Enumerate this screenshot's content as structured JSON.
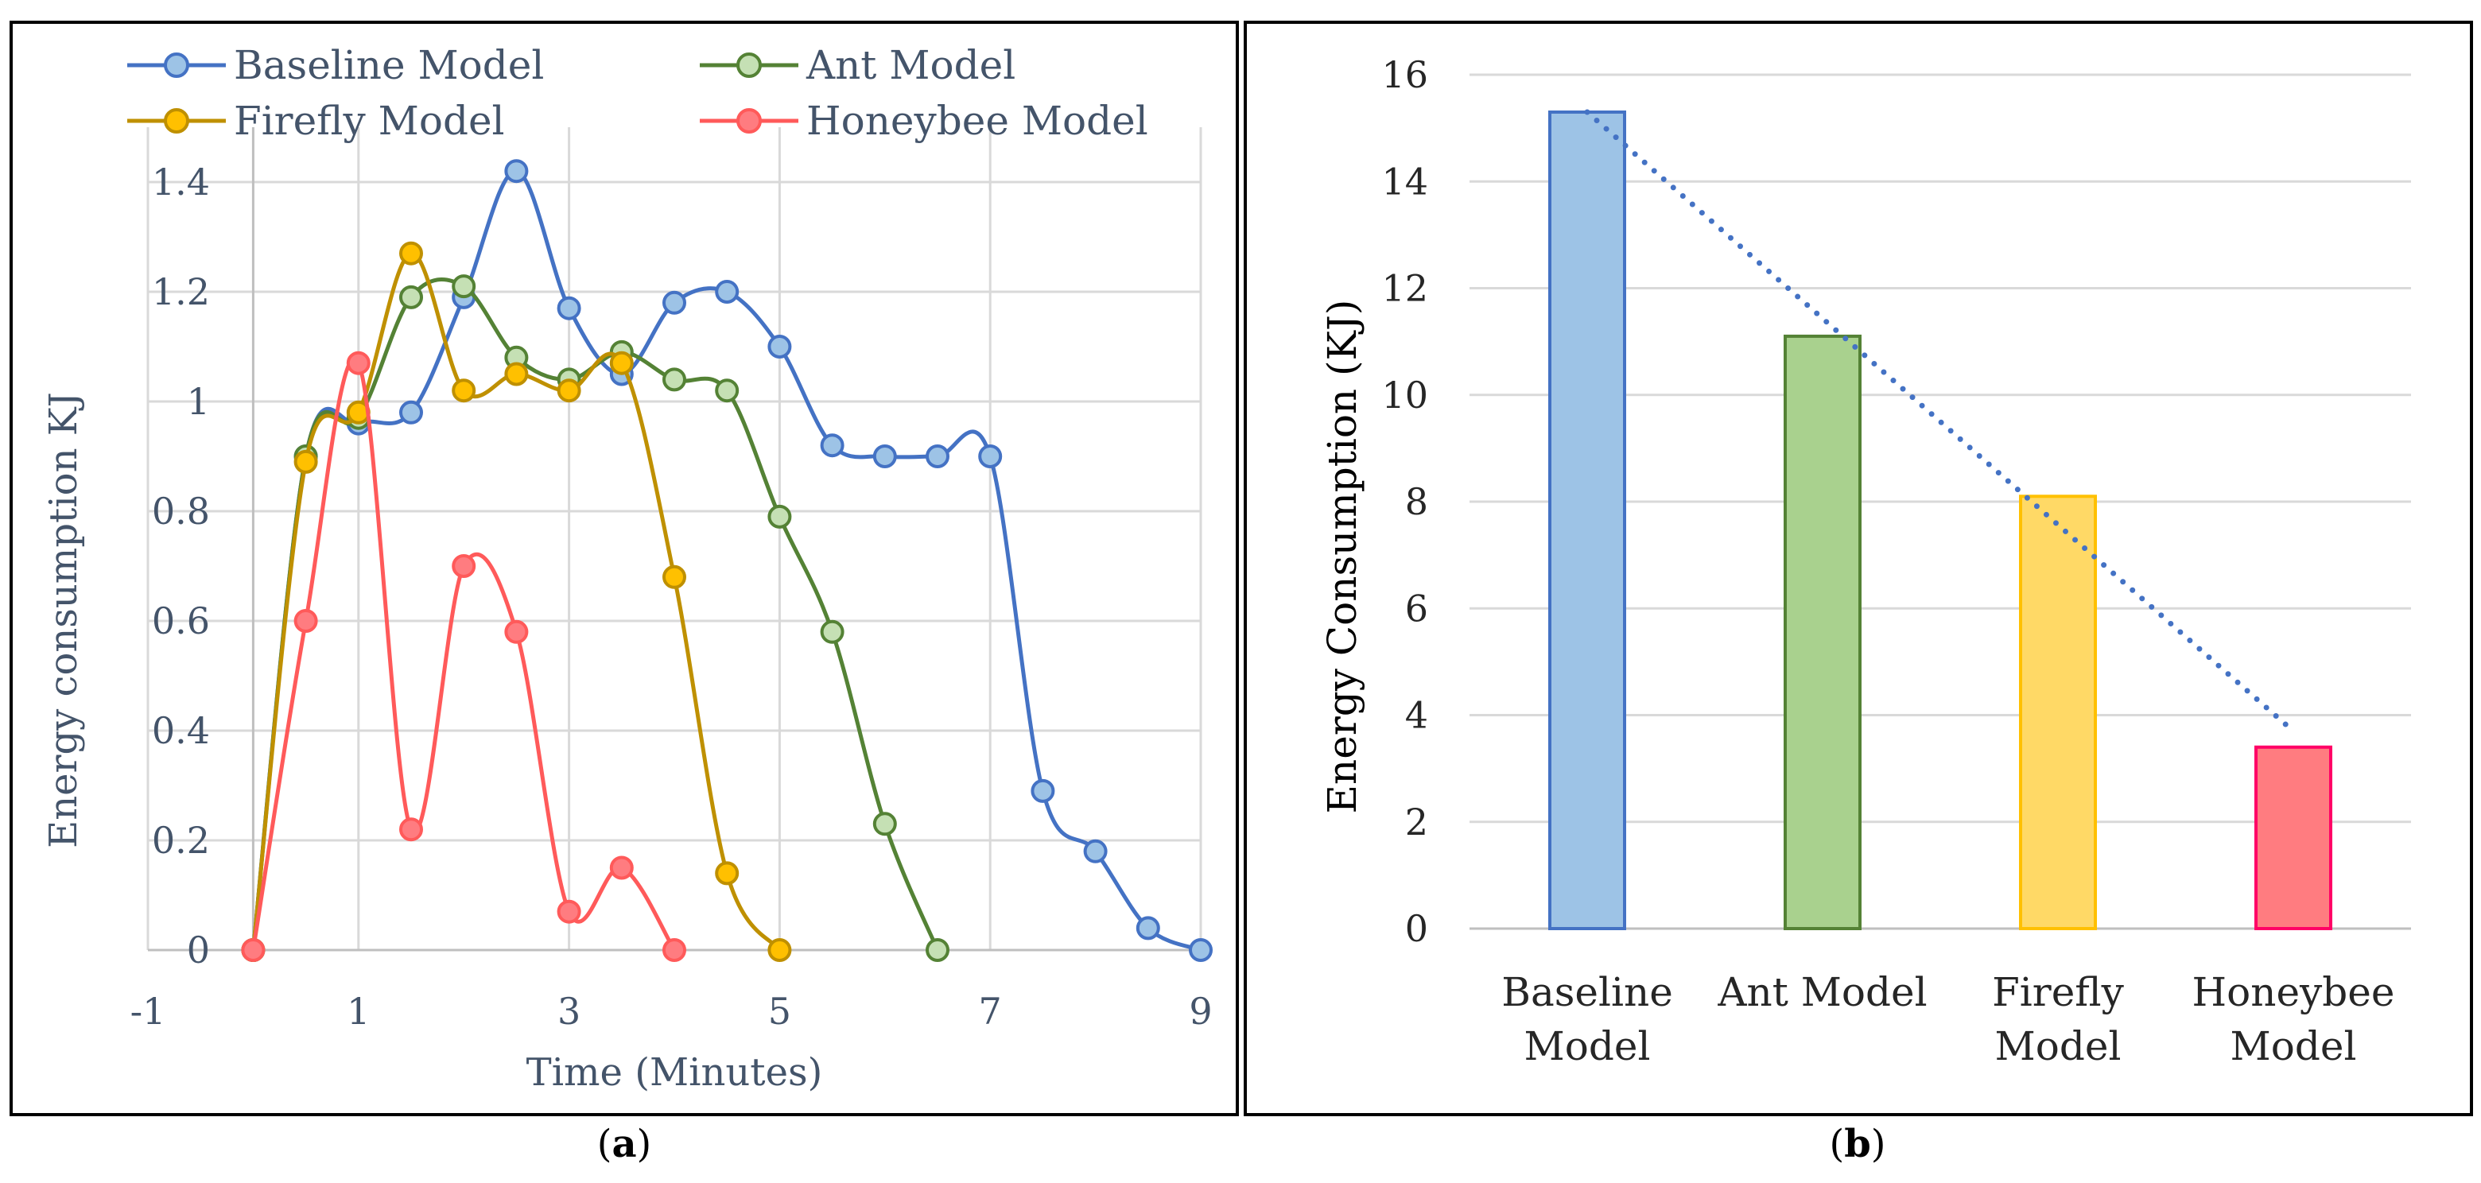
{
  "chart_data": [
    {
      "type": "line",
      "panel": "a",
      "title": "",
      "xlabel": "Time (Minutes)",
      "ylabel": "Energy consumption KJ",
      "xlim": [
        -1,
        9
      ],
      "ylim": [
        0,
        1.5
      ],
      "x_ticks": [
        -1,
        1,
        3,
        5,
        7,
        9
      ],
      "x_tick_labels": [
        "-1",
        "1",
        "3",
        "5",
        "7",
        "9"
      ],
      "y_ticks": [
        0,
        0.2,
        0.4,
        0.6,
        0.8,
        1,
        1.2,
        1.4
      ],
      "y_tick_labels": [
        "0",
        "0.2",
        "0.4",
        "0.6",
        "0.8",
        "1",
        "1.2",
        "1.4"
      ],
      "grid": true,
      "legend": "top",
      "series": [
        {
          "name": "Baseline Model",
          "color": "#4472c4",
          "fill": "#9dc3e6",
          "x": [
            0,
            0.5,
            1,
            1.5,
            2,
            2.5,
            3,
            3.5,
            4,
            4.5,
            5,
            5.5,
            6,
            6.5,
            7,
            7.5,
            8,
            8.5,
            9
          ],
          "y": [
            0,
            0.9,
            0.96,
            0.98,
            1.19,
            1.42,
            1.17,
            1.05,
            1.18,
            1.2,
            1.1,
            0.92,
            0.9,
            0.9,
            0.9,
            0.29,
            0.18,
            0.04,
            0
          ]
        },
        {
          "name": "Ant Model",
          "color": "#548235",
          "fill": "#c5e0b4",
          "x": [
            0,
            0.5,
            1,
            1.5,
            2,
            2.5,
            3,
            3.5,
            4,
            4.5,
            5,
            5.5,
            6,
            6.5
          ],
          "y": [
            0,
            0.9,
            0.97,
            1.19,
            1.21,
            1.08,
            1.04,
            1.09,
            1.04,
            1.02,
            0.79,
            0.58,
            0.23,
            0
          ]
        },
        {
          "name": "Firefly Model",
          "color": "#bf9000",
          "fill": "#ffc000",
          "x": [
            0,
            0.5,
            1,
            1.5,
            2,
            2.5,
            3,
            3.5,
            4,
            4.5,
            5
          ],
          "y": [
            0,
            0.89,
            0.98,
            1.27,
            1.02,
            1.05,
            1.02,
            1.07,
            0.68,
            0.14,
            0
          ]
        },
        {
          "name": "Honeybee Model",
          "color": "#ff5a5a",
          "fill": "#ff7c80",
          "x": [
            0,
            0.5,
            1,
            1.5,
            2,
            2.5,
            3,
            3.5,
            4
          ],
          "y": [
            0,
            0.6,
            1.07,
            0.22,
            0.7,
            0.58,
            0.07,
            0.15,
            0
          ]
        }
      ]
    },
    {
      "type": "bar",
      "panel": "b",
      "title": "",
      "xlabel": "",
      "ylabel": "Energy Consumption (KJ)",
      "ylim": [
        0,
        16
      ],
      "y_ticks": [
        0,
        2,
        4,
        6,
        8,
        10,
        12,
        14,
        16
      ],
      "y_tick_labels": [
        "0",
        "2",
        "4",
        "6",
        "8",
        "10",
        "12",
        "14",
        "16"
      ],
      "grid": true,
      "categories": [
        [
          "Baseline",
          "Model"
        ],
        [
          "Ant Model"
        ],
        [
          "Firefly",
          "Model"
        ],
        [
          "Honeybee",
          "Model"
        ]
      ],
      "values": [
        15.3,
        11.1,
        8.1,
        3.4
      ],
      "bar_fills": [
        "#9dc3e6",
        "#a9d18e",
        "#ffd966",
        "#ff7c80"
      ],
      "bar_strokes": [
        "#4472c4",
        "#548235",
        "#ffc000",
        "#ff0066"
      ],
      "trendline": {
        "type": "linear",
        "color": "#4472c4",
        "style": "dotted",
        "from": 15.3,
        "to": 3.7
      }
    }
  ],
  "captions": {
    "a": {
      "open": "(",
      "letter": "a",
      "close": ")"
    },
    "b": {
      "open": "(",
      "letter": "b",
      "close": ")"
    }
  }
}
